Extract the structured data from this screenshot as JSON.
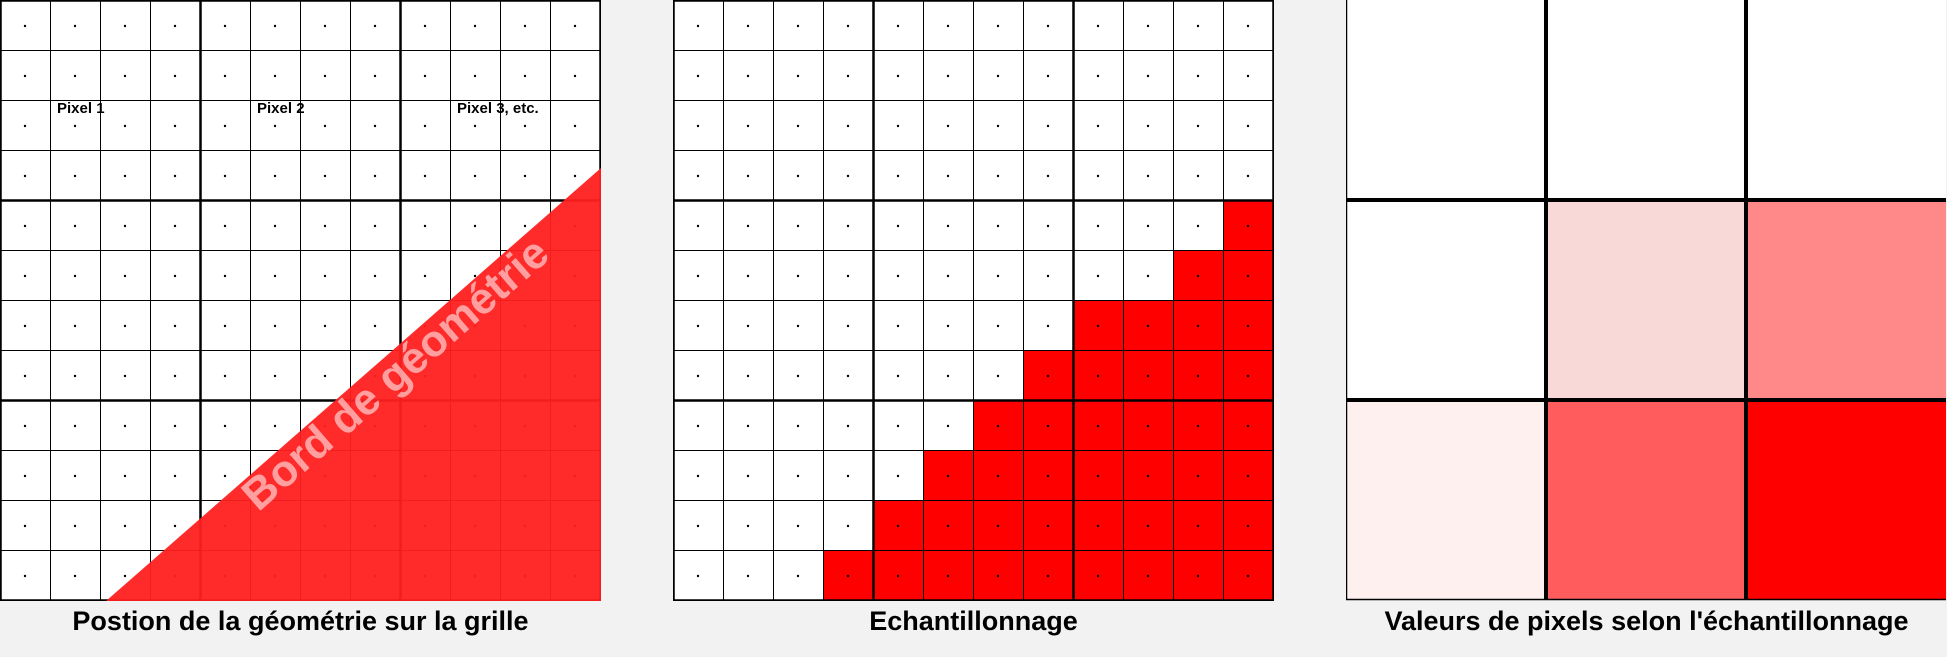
{
  "panels": [
    {
      "caption": "Postion de la géométrie sur la grille",
      "pixel_labels": [
        "Pixel 1",
        "Pixel 2",
        "Pixel 3, etc."
      ],
      "geometry_label": "Bord de géométrie",
      "geometry_color": "#ff2020"
    },
    {
      "caption": "Echantillonnage",
      "sample_color": "#ff0000",
      "filled_from_column_per_row": [
        null,
        null,
        null,
        null,
        11,
        10,
        8,
        7,
        6,
        5,
        4,
        3
      ]
    },
    {
      "caption": "Valeurs de pixels selon l'échantillonnage",
      "pixel_colors": [
        [
          "#ffffff",
          "#ffffff",
          "#ffffff"
        ],
        [
          "#ffffff",
          "#f9d8d8",
          "#ff8888"
        ],
        [
          "#fdf0ef",
          "#ff5d5d",
          "#ff0000"
        ]
      ]
    }
  ]
}
